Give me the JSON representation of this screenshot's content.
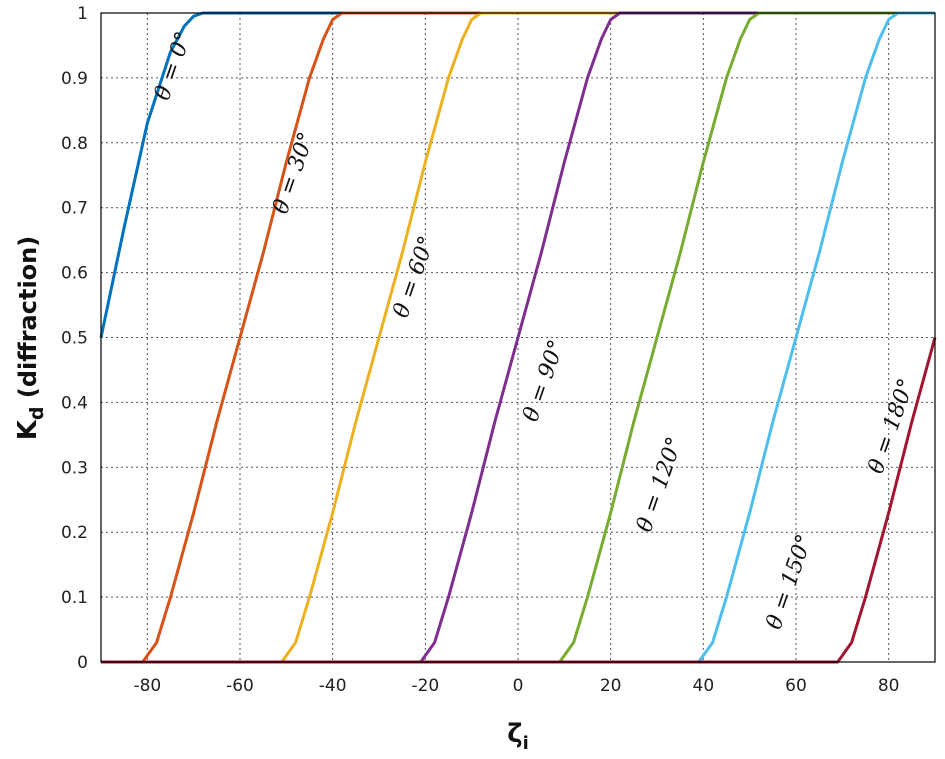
{
  "chart_data": {
    "type": "line",
    "xlabel": "ζ",
    "xlabel_sub": "i",
    "ylabel": "K",
    "ylabel_sub": "d",
    "ylabel_suffix": " (diffraction)",
    "xlim": [
      -90,
      90
    ],
    "ylim": [
      0,
      1
    ],
    "x_ticks": [
      -80,
      -60,
      -40,
      -20,
      0,
      20,
      40,
      60,
      80
    ],
    "y_ticks": [
      0,
      0.1,
      0.2,
      0.3,
      0.4,
      0.5,
      0.6,
      0.7,
      0.8,
      0.9,
      1
    ],
    "grid": true,
    "series": [
      {
        "name": "θ = 0°",
        "color": "#0072BD",
        "x": [
          -90,
          -85,
          -80,
          -75,
          -72,
          -70,
          -68,
          -66,
          90
        ],
        "y": [
          0.5,
          0.67,
          0.83,
          0.94,
          0.98,
          0.995,
          1.0,
          1.0,
          1.0
        ]
      },
      {
        "name": "θ = 30°",
        "color": "#D95319",
        "x": [
          -90,
          -81,
          -78,
          -75,
          -70,
          -65,
          -60,
          -55,
          -50,
          -45,
          -42,
          -40,
          -38,
          90
        ],
        "y": [
          0,
          0,
          0.03,
          0.1,
          0.23,
          0.37,
          0.5,
          0.63,
          0.77,
          0.9,
          0.96,
          0.99,
          1.0,
          1.0
        ]
      },
      {
        "name": "θ = 60°",
        "color": "#EDB120",
        "x": [
          -90,
          -51,
          -48,
          -45,
          -40,
          -35,
          -30,
          -25,
          -20,
          -15,
          -12,
          -10,
          -8,
          90
        ],
        "y": [
          0,
          0,
          0.03,
          0.1,
          0.23,
          0.37,
          0.5,
          0.63,
          0.77,
          0.9,
          0.96,
          0.99,
          1.0,
          1.0
        ]
      },
      {
        "name": "θ = 90°",
        "color": "#7E2F8E",
        "x": [
          -90,
          -21,
          -18,
          -15,
          -10,
          -5,
          0,
          5,
          10,
          15,
          18,
          20,
          22,
          90
        ],
        "y": [
          0,
          0,
          0.03,
          0.1,
          0.23,
          0.37,
          0.5,
          0.63,
          0.77,
          0.9,
          0.96,
          0.99,
          1.0,
          1.0
        ]
      },
      {
        "name": "θ = 120°",
        "color": "#77AC30",
        "x": [
          -90,
          9,
          12,
          15,
          20,
          25,
          30,
          35,
          40,
          45,
          48,
          50,
          52,
          90
        ],
        "y": [
          0,
          0,
          0.03,
          0.1,
          0.23,
          0.37,
          0.5,
          0.63,
          0.77,
          0.9,
          0.96,
          0.99,
          1.0,
          1.0
        ]
      },
      {
        "name": "θ = 150°",
        "color": "#4DBEEE",
        "x": [
          -90,
          39,
          42,
          45,
          50,
          55,
          60,
          65,
          70,
          75,
          78,
          80,
          82,
          90
        ],
        "y": [
          0,
          0,
          0.03,
          0.1,
          0.23,
          0.37,
          0.5,
          0.63,
          0.77,
          0.9,
          0.96,
          0.99,
          1.0,
          1.0
        ]
      },
      {
        "name": "θ = 180°",
        "color": "#A2142F",
        "x": [
          -90,
          69,
          72,
          75,
          80,
          85,
          90
        ],
        "y": [
          0,
          0,
          0.03,
          0.1,
          0.23,
          0.37,
          0.5
        ]
      }
    ],
    "annotations": [
      {
        "text": "θ = 0°",
        "x": -73,
        "y": 0.915,
        "angle": -71
      },
      {
        "text": "θ = 30°",
        "x": -47,
        "y": 0.75,
        "angle": -71
      },
      {
        "text": "θ = 60°",
        "x": -21,
        "y": 0.59,
        "angle": -71
      },
      {
        "text": "θ = 90°",
        "x": 7,
        "y": 0.43,
        "angle": -71
      },
      {
        "text": "θ = 120°",
        "x": 32,
        "y": 0.27,
        "angle": -71
      },
      {
        "text": "θ = 150°",
        "x": 60,
        "y": 0.12,
        "angle": -71
      },
      {
        "text": "θ = 180°",
        "x": 82,
        "y": 0.36,
        "angle": -71
      }
    ]
  }
}
